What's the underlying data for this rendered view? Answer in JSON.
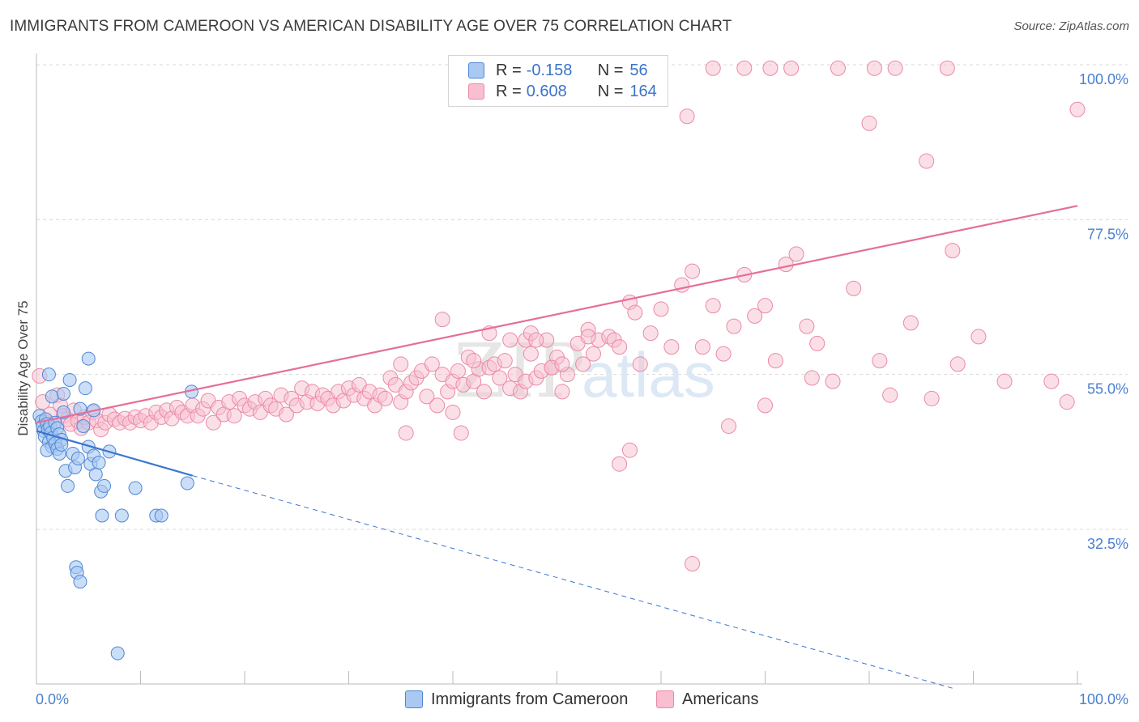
{
  "title": "IMMIGRANTS FROM CAMEROON VS AMERICAN DISABILITY AGE OVER 75 CORRELATION CHART",
  "source": "Source: ZipAtlas.com",
  "watermark": "ZIPatlas",
  "legend": {
    "rows": [
      {
        "r_label": "R =",
        "r_value": "-0.158",
        "n_label": "N =",
        "n_value": "56"
      },
      {
        "r_label": "R =",
        "r_value": "0.608",
        "n_label": "N =",
        "n_value": "164"
      }
    ]
  },
  "bottom_legend": {
    "series1": "Immigrants from Cameroon",
    "series2": "Americans"
  },
  "colors": {
    "blue_fill": "#a9c8f2",
    "blue_stroke": "#4f87d6",
    "blue_line": "#3a76d0",
    "pink_fill": "#f7bfd0",
    "pink_stroke": "#ea89a8",
    "pink_line": "#e56f97",
    "tick_text": "#4a7fcf",
    "grid": "#d9d9d9"
  },
  "chart_data": {
    "type": "scatter",
    "title": "IMMIGRANTS FROM CAMEROON VS AMERICAN DISABILITY AGE OVER 75 CORRELATION CHART",
    "xlabel": "",
    "ylabel": "Disability Age Over 75",
    "xlim": [
      0,
      100
    ],
    "ylim": [
      10,
      102
    ],
    "x_tick_labels": [
      "0.0%",
      "100.0%"
    ],
    "y_ticks": [
      32.5,
      55.0,
      77.5,
      100.0
    ],
    "y_tick_labels": [
      "32.5%",
      "55.0%",
      "77.5%",
      "100.0%"
    ],
    "grid": true,
    "legend_position": "top-center",
    "series": [
      {
        "name": "Immigrants from Cameroon",
        "color": "#a9c8f2",
        "trend": {
          "x": [
            0,
            15
          ],
          "y": [
            46.8,
            40.3
          ],
          "extended_to": [
            88.3,
            9.3
          ]
        },
        "points": [
          [
            0.3,
            49.0
          ],
          [
            0.5,
            48.2
          ],
          [
            0.6,
            47.5
          ],
          [
            0.7,
            46.8
          ],
          [
            0.8,
            46.0
          ],
          [
            0.9,
            48.5
          ],
          [
            1.0,
            47.8
          ],
          [
            1.1,
            47.0
          ],
          [
            1.2,
            45.2
          ],
          [
            1.3,
            47.5
          ],
          [
            1.4,
            46.5
          ],
          [
            1.5,
            44.5
          ],
          [
            1.6,
            45.8
          ],
          [
            1.8,
            48.0
          ],
          [
            2.0,
            47.2
          ],
          [
            2.2,
            46.3
          ],
          [
            2.4,
            45.5
          ],
          [
            2.6,
            49.5
          ],
          [
            1.0,
            44.0
          ],
          [
            1.2,
            55.0
          ],
          [
            1.5,
            51.8
          ],
          [
            1.8,
            45.0
          ],
          [
            2.0,
            44.2
          ],
          [
            2.2,
            43.5
          ],
          [
            2.4,
            44.8
          ],
          [
            2.6,
            52.2
          ],
          [
            2.8,
            41.0
          ],
          [
            3.0,
            38.8
          ],
          [
            3.2,
            54.2
          ],
          [
            3.5,
            43.5
          ],
          [
            3.7,
            41.5
          ],
          [
            4.0,
            42.8
          ],
          [
            4.2,
            50.0
          ],
          [
            4.5,
            47.5
          ],
          [
            4.7,
            53.0
          ],
          [
            5.0,
            44.5
          ],
          [
            5.2,
            42.0
          ],
          [
            5.5,
            43.2
          ],
          [
            5.7,
            40.5
          ],
          [
            6.0,
            42.2
          ],
          [
            6.2,
            38.0
          ],
          [
            6.5,
            38.8
          ],
          [
            3.8,
            27.0
          ],
          [
            3.9,
            26.2
          ],
          [
            4.2,
            24.9
          ],
          [
            5.0,
            57.3
          ],
          [
            5.5,
            49.8
          ],
          [
            6.3,
            34.5
          ],
          [
            7.0,
            43.8
          ],
          [
            8.2,
            34.5
          ],
          [
            7.8,
            14.5
          ],
          [
            9.5,
            38.5
          ],
          [
            11.5,
            34.5
          ],
          [
            12.0,
            34.5
          ],
          [
            14.5,
            39.2
          ],
          [
            14.9,
            52.5
          ]
        ]
      },
      {
        "name": "Americans",
        "color": "#f7bfd0",
        "trend": {
          "x": [
            0,
            100
          ],
          "y": [
            48.0,
            79.5
          ]
        },
        "points": [
          [
            0.3,
            54.8
          ],
          [
            0.6,
            51.0
          ],
          [
            1.0,
            48.0
          ],
          [
            1.3,
            49.2
          ],
          [
            1.6,
            47.5
          ],
          [
            2.0,
            52.0
          ],
          [
            2.3,
            50.5
          ],
          [
            2.6,
            49.0
          ],
          [
            3.0,
            48.5
          ],
          [
            3.3,
            47.8
          ],
          [
            3.6,
            49.8
          ],
          [
            4.0,
            48.2
          ],
          [
            4.3,
            47.2
          ],
          [
            4.6,
            48.8
          ],
          [
            5.0,
            48.0
          ],
          [
            5.4,
            49.5
          ],
          [
            5.8,
            48.3
          ],
          [
            6.2,
            47.0
          ],
          [
            6.6,
            48.0
          ],
          [
            7.0,
            49.2
          ],
          [
            7.5,
            48.5
          ],
          [
            8.0,
            48.0
          ],
          [
            8.5,
            48.6
          ],
          [
            9.0,
            48.0
          ],
          [
            9.5,
            48.8
          ],
          [
            10.0,
            48.3
          ],
          [
            10.5,
            49.0
          ],
          [
            11.0,
            48.0
          ],
          [
            11.5,
            49.5
          ],
          [
            12.0,
            48.8
          ],
          [
            12.5,
            49.8
          ],
          [
            13.0,
            48.6
          ],
          [
            13.5,
            50.2
          ],
          [
            14.0,
            49.5
          ],
          [
            14.5,
            49.0
          ],
          [
            15.0,
            50.5
          ],
          [
            15.5,
            49.0
          ],
          [
            16.0,
            50.0
          ],
          [
            16.5,
            51.2
          ],
          [
            17.0,
            48.0
          ],
          [
            17.5,
            50.2
          ],
          [
            18.0,
            49.2
          ],
          [
            18.5,
            51.0
          ],
          [
            19.0,
            49.0
          ],
          [
            19.5,
            51.5
          ],
          [
            20.0,
            50.5
          ],
          [
            20.5,
            50.0
          ],
          [
            21.0,
            51.0
          ],
          [
            21.5,
            49.5
          ],
          [
            22.0,
            51.5
          ],
          [
            22.5,
            50.5
          ],
          [
            23.0,
            50.0
          ],
          [
            23.5,
            52.0
          ],
          [
            24.0,
            49.2
          ],
          [
            24.5,
            51.5
          ],
          [
            25.0,
            50.5
          ],
          [
            25.5,
            53.0
          ],
          [
            26.0,
            51.0
          ],
          [
            26.5,
            52.5
          ],
          [
            27.0,
            50.8
          ],
          [
            27.5,
            52.0
          ],
          [
            28.0,
            51.5
          ],
          [
            28.5,
            50.5
          ],
          [
            29.0,
            52.5
          ],
          [
            29.5,
            51.2
          ],
          [
            30.0,
            53.0
          ],
          [
            30.5,
            52.0
          ],
          [
            31.0,
            53.5
          ],
          [
            31.5,
            51.5
          ],
          [
            32.0,
            52.5
          ],
          [
            32.5,
            50.5
          ],
          [
            33.0,
            52.0
          ],
          [
            33.5,
            51.5
          ],
          [
            34.0,
            54.5
          ],
          [
            34.5,
            53.5
          ],
          [
            35.0,
            51.0
          ],
          [
            35.5,
            52.5
          ],
          [
            36.0,
            53.8
          ],
          [
            36.5,
            54.5
          ],
          [
            37.0,
            55.5
          ],
          [
            37.5,
            51.8
          ],
          [
            38.0,
            56.5
          ],
          [
            38.5,
            50.5
          ],
          [
            39.0,
            55.0
          ],
          [
            39.5,
            52.5
          ],
          [
            40.0,
            54.0
          ],
          [
            40.5,
            55.5
          ],
          [
            41.0,
            53.5
          ],
          [
            41.5,
            57.5
          ],
          [
            42.0,
            54.0
          ],
          [
            42.5,
            55.8
          ],
          [
            43.0,
            52.5
          ],
          [
            43.5,
            56.0
          ],
          [
            44.0,
            56.5
          ],
          [
            44.5,
            54.5
          ],
          [
            45.0,
            57.0
          ],
          [
            45.5,
            53.0
          ],
          [
            46.0,
            55.0
          ],
          [
            46.5,
            52.5
          ],
          [
            47.0,
            54.0
          ],
          [
            47.5,
            58.0
          ],
          [
            48.0,
            54.5
          ],
          [
            48.5,
            55.5
          ],
          [
            49.0,
            60.0
          ],
          [
            49.5,
            56.0
          ],
          [
            50.0,
            57.5
          ],
          [
            50.5,
            52.5
          ],
          [
            51.0,
            55.0
          ],
          [
            52.0,
            59.5
          ],
          [
            52.5,
            56.5
          ],
          [
            53.0,
            61.5
          ],
          [
            53.5,
            58.0
          ],
          [
            54.0,
            60.0
          ],
          [
            35.0,
            56.5
          ],
          [
            35.5,
            46.5
          ],
          [
            39.0,
            63.0
          ],
          [
            40.0,
            49.5
          ],
          [
            40.8,
            46.5
          ],
          [
            42.0,
            57.0
          ],
          [
            43.5,
            61.0
          ],
          [
            45.5,
            60.0
          ],
          [
            47.0,
            60.0
          ],
          [
            47.5,
            61.0
          ],
          [
            48.0,
            60.0
          ],
          [
            49.5,
            56.0
          ],
          [
            50.5,
            56.5
          ],
          [
            53.0,
            60.5
          ],
          [
            55.0,
            60.5
          ],
          [
            55.5,
            60.0
          ],
          [
            56.0,
            59.0
          ],
          [
            57.0,
            65.5
          ],
          [
            57.5,
            64.0
          ],
          [
            58.0,
            56.5
          ],
          [
            59.0,
            61.0
          ],
          [
            60.0,
            64.5
          ],
          [
            61.0,
            59.0
          ],
          [
            62.0,
            68.0
          ],
          [
            63.0,
            70.0
          ],
          [
            64.0,
            59.0
          ],
          [
            65.0,
            65.0
          ],
          [
            66.0,
            58.0
          ],
          [
            67.0,
            62.0
          ],
          [
            68.0,
            69.5
          ],
          [
            69.0,
            63.5
          ],
          [
            70.0,
            65.0
          ],
          [
            71.0,
            57.0
          ],
          [
            72.0,
            71.0
          ],
          [
            73.0,
            72.5
          ],
          [
            74.0,
            62.0
          ],
          [
            75.0,
            59.5
          ],
          [
            62.5,
            92.5
          ],
          [
            65.0,
            99.5
          ],
          [
            68.0,
            99.5
          ],
          [
            70.5,
            99.5
          ],
          [
            72.5,
            99.5
          ],
          [
            77.0,
            99.5
          ],
          [
            80.5,
            99.5
          ],
          [
            82.5,
            99.5
          ],
          [
            87.5,
            99.5
          ],
          [
            80.0,
            91.5
          ],
          [
            85.5,
            86.0
          ],
          [
            88.0,
            73.0
          ],
          [
            76.5,
            54.0
          ],
          [
            81.0,
            57.0
          ],
          [
            82.0,
            52.0
          ],
          [
            84.0,
            62.5
          ],
          [
            86.0,
            51.5
          ],
          [
            88.5,
            56.5
          ],
          [
            90.5,
            60.5
          ],
          [
            93.0,
            54.0
          ],
          [
            97.5,
            54.0
          ],
          [
            100.0,
            93.5
          ],
          [
            99.0,
            51.0
          ],
          [
            56.0,
            42.0
          ],
          [
            57.0,
            44.0
          ],
          [
            63.0,
            27.5
          ],
          [
            66.5,
            47.5
          ],
          [
            70.0,
            50.5
          ],
          [
            74.5,
            54.5
          ],
          [
            78.5,
            67.5
          ]
        ]
      }
    ]
  }
}
